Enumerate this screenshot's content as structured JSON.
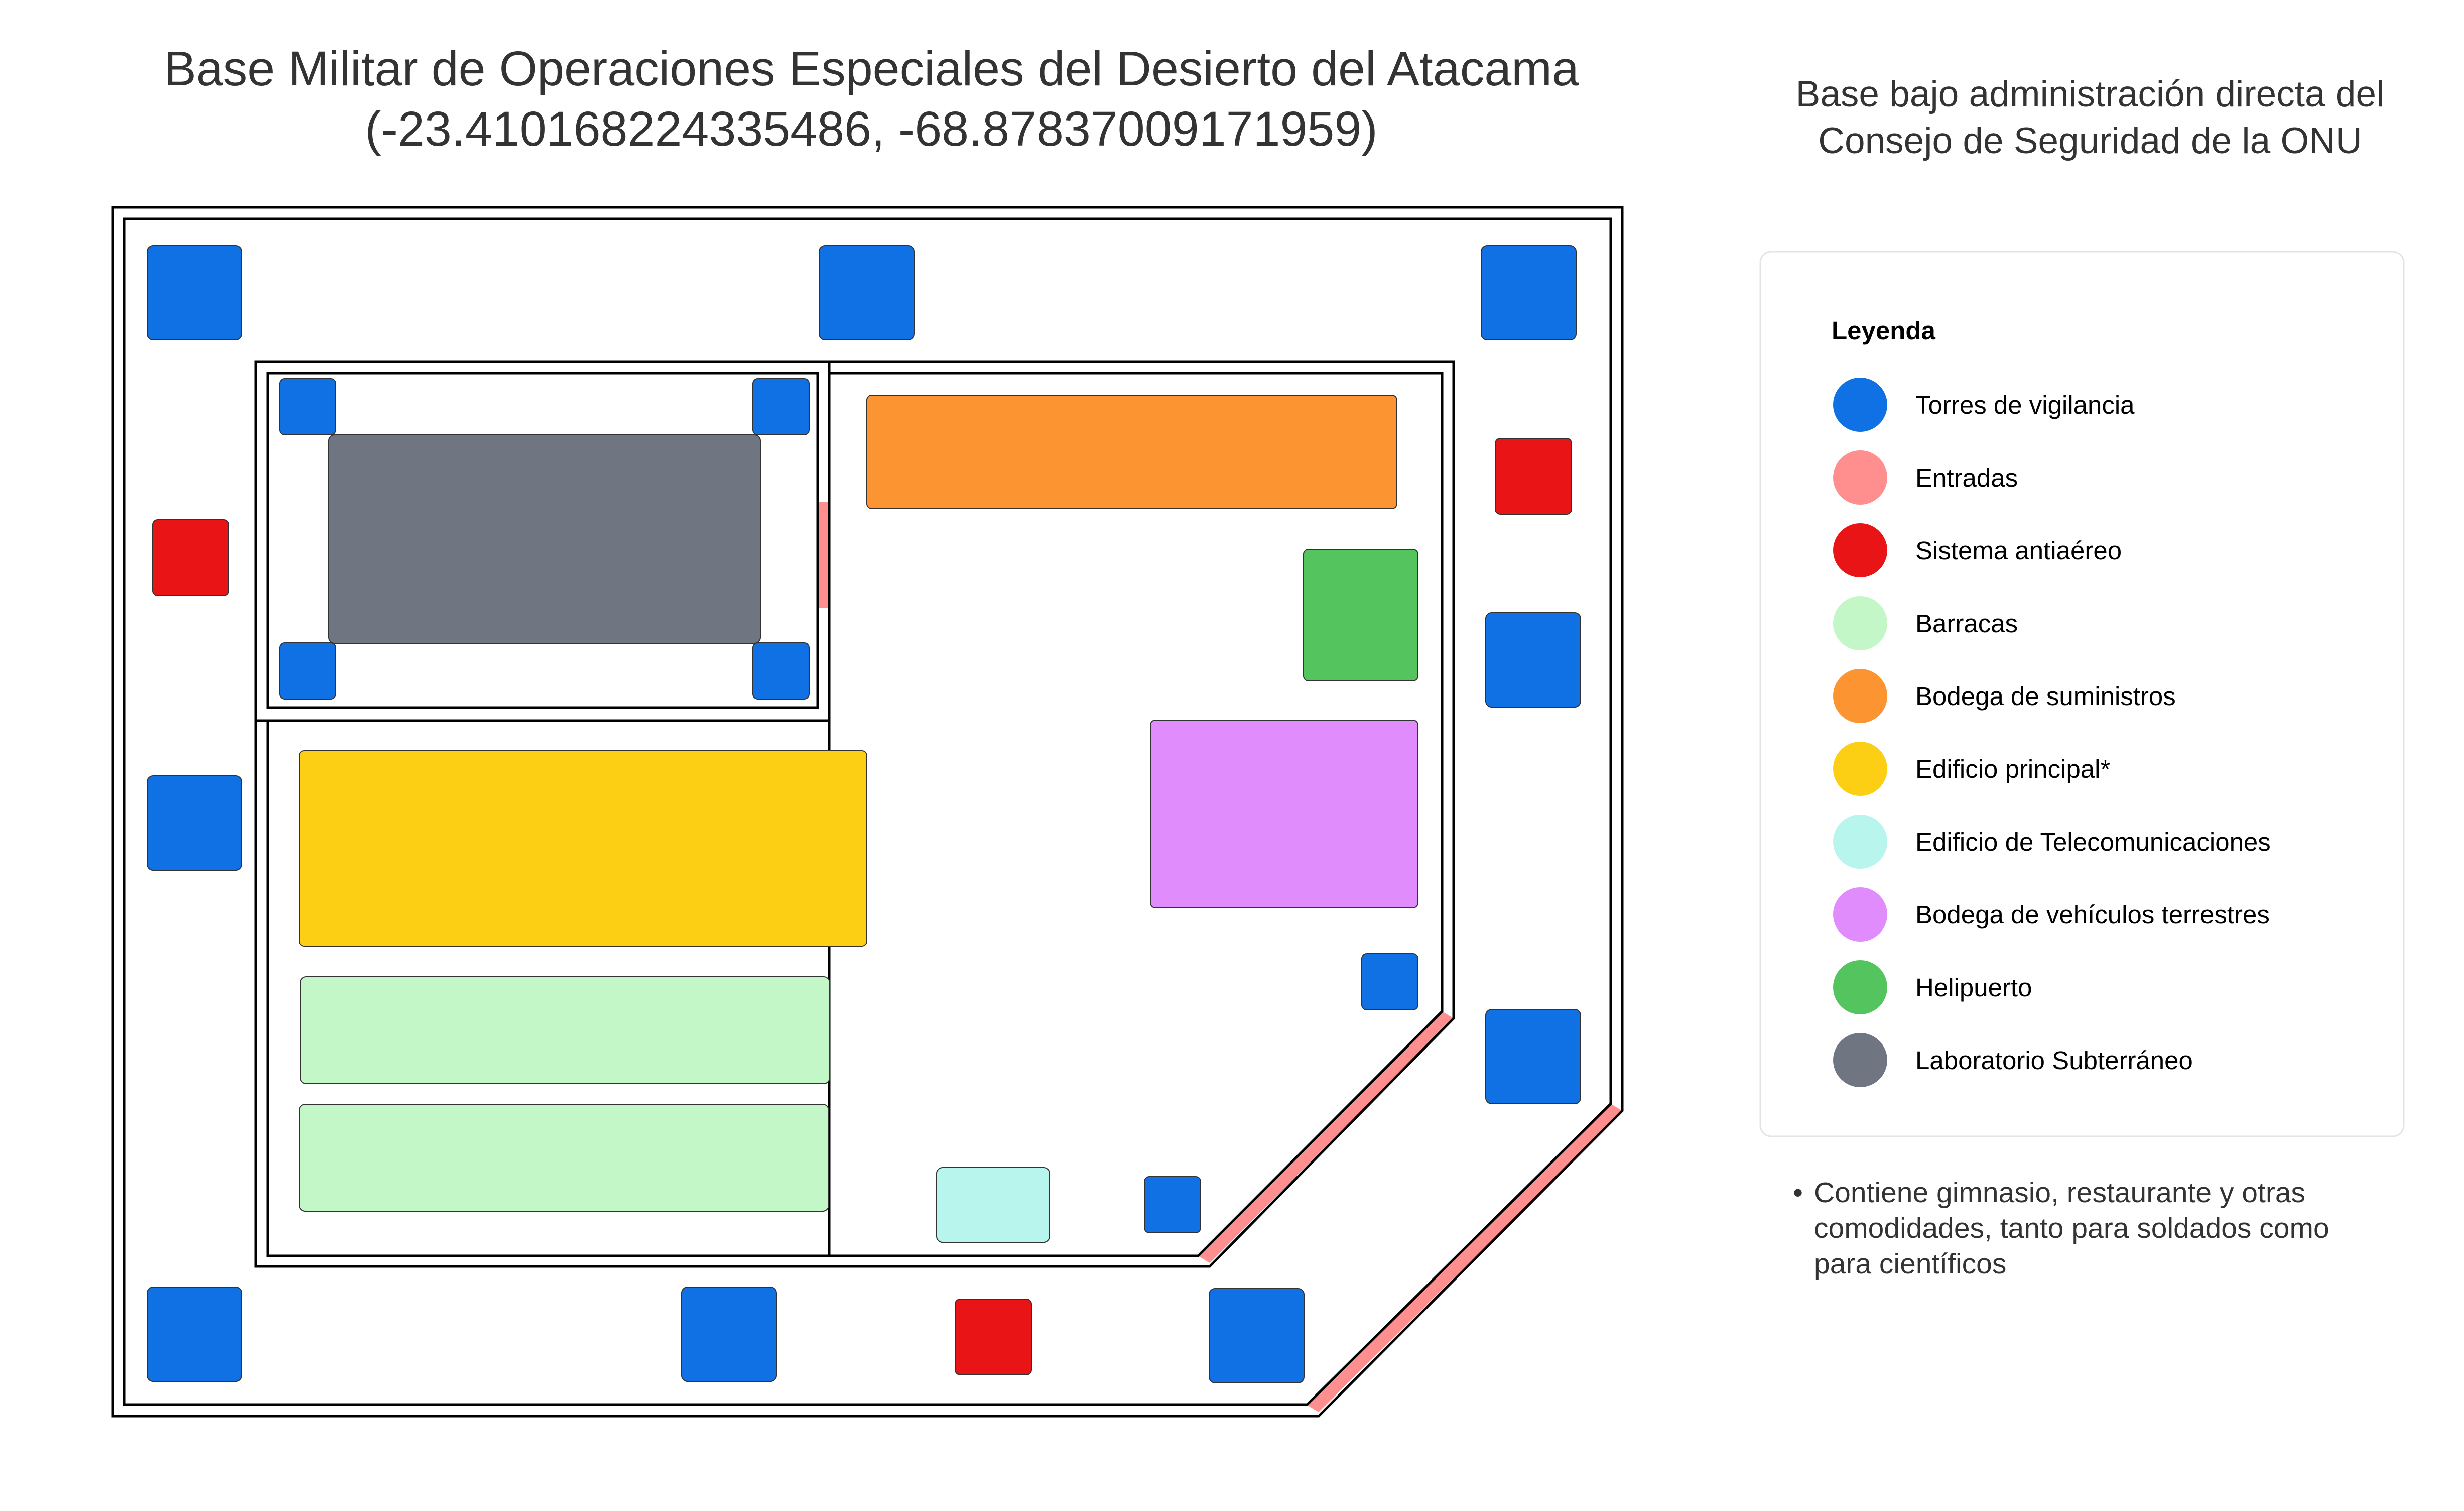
{
  "title": {
    "line1": "Base Militar de Operaciones Especiales del Desierto del Atacama",
    "line2": "(-23.410168224335486, -68.87837009171959)"
  },
  "admin_note": {
    "line1": "Base bajo administración directa del",
    "line2": "Consejo de Seguridad de la ONU"
  },
  "legend": {
    "title": "Leyenda",
    "items": [
      {
        "label": "Torres de vigilancia",
        "color": "#1071e5"
      },
      {
        "label": "Entradas",
        "color": "#ff8f8f"
      },
      {
        "label": "Sistema antiaéreo",
        "color": "#e81416"
      },
      {
        "label": "Barracas",
        "color": "#c3f7c8"
      },
      {
        "label": "Bodega de suministros",
        "color": "#fc9432"
      },
      {
        "label": "Edificio principal*",
        "color": "#fcce14"
      },
      {
        "label": "Edificio de Telecomunicaciones",
        "color": "#b8f5ed"
      },
      {
        "label": "Bodega de vehículos terrestres",
        "color": "#e08cfc"
      },
      {
        "label": "Helipuerto",
        "color": "#54c45e"
      },
      {
        "label": "Laboratorio Subterráneo",
        "color": "#6f7681"
      }
    ]
  },
  "footnote": {
    "bullet": "•",
    "line1": "Contiene gimnasio, restaurante y otras",
    "line2": "comodidades, tanto para soldados como",
    "line3": "para científicos"
  }
}
